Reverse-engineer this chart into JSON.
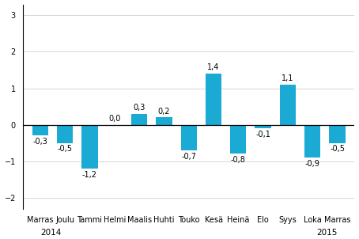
{
  "categories": [
    "Marras",
    "Joulu",
    "Tammi",
    "Helmi",
    "Maalis",
    "Huhti",
    "Touko",
    "Kesä",
    "Heinä",
    "Elo",
    "Syys",
    "Loka",
    "Marras"
  ],
  "values": [
    -0.3,
    -0.5,
    -1.2,
    0.0,
    0.3,
    0.2,
    -0.7,
    1.4,
    -0.8,
    -0.1,
    1.1,
    -0.9,
    -0.5
  ],
  "bar_color": "#1aaad4",
  "ylim": [
    -2.3,
    3.3
  ],
  "yticks": [
    -2,
    -1,
    0,
    1,
    2,
    3
  ],
  "label_fontsize": 7,
  "tick_fontsize": 7,
  "year_fontsize": 7.5,
  "bar_width": 0.65
}
